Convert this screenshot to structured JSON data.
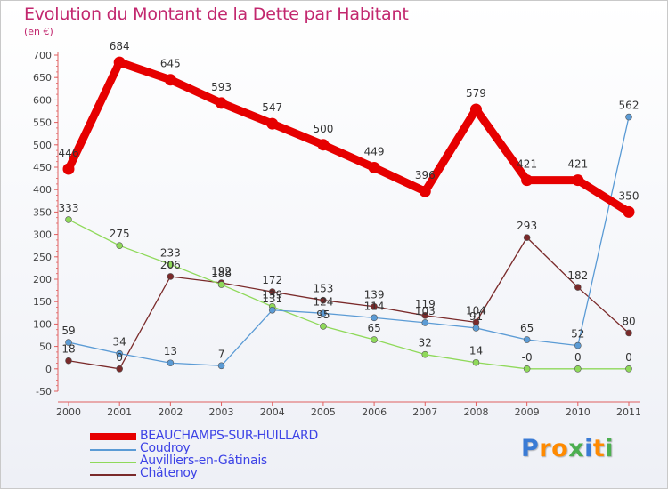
{
  "chart_data": {
    "type": "line",
    "title": "Evolution du Montant de la Dette par Habitant",
    "subtitle": "(en €)",
    "xlabel": "",
    "ylabel": "",
    "categories": [
      "2000",
      "2001",
      "2002",
      "2003",
      "2004",
      "2005",
      "2006",
      "2007",
      "2008",
      "2009",
      "2010",
      "2011"
    ],
    "ylim": [
      -50,
      700
    ],
    "yticks": [
      -50,
      0,
      50,
      100,
      150,
      200,
      250,
      300,
      350,
      400,
      450,
      500,
      550,
      600,
      650,
      700
    ],
    "grid": false,
    "legend_position": "bottom-left",
    "series": [
      {
        "name": "BEAUCHAMPS-SUR-HUILLARD",
        "color": "#e60000",
        "values": [
          446,
          684,
          645,
          593,
          547,
          500,
          449,
          396,
          579,
          421,
          421,
          350
        ],
        "labels": [
          "446",
          "684",
          "645",
          "593",
          "547",
          "500",
          "449",
          "396",
          "579",
          "421",
          "421",
          "350"
        ]
      },
      {
        "name": "Coudroy",
        "color": "#5b9bd5",
        "values": [
          59,
          34,
          13,
          7,
          131,
          124,
          114,
          103,
          91,
          65,
          52,
          562
        ],
        "labels": [
          "59",
          "34",
          "13",
          "7",
          "131",
          "124",
          "114",
          "103",
          "91",
          "65",
          "52",
          "562"
        ]
      },
      {
        "name": "Auvilliers-en-Gâtinais",
        "color": "#8fd95a",
        "values": [
          333,
          275,
          233,
          188,
          139,
          95,
          65,
          32,
          14,
          0,
          0,
          0
        ],
        "labels": [
          "333",
          "275",
          "233",
          "188",
          "139",
          "95",
          "65",
          "32",
          "14",
          "-0",
          "0",
          "0"
        ]
      },
      {
        "name": "Châtenoy",
        "color": "#7a2a2a",
        "values": [
          18,
          0,
          206,
          192,
          172,
          153,
          139,
          119,
          104,
          293,
          182,
          80
        ],
        "labels": [
          "18",
          "0",
          "206",
          "192",
          "172",
          "153",
          "139",
          "119",
          "104",
          "293",
          "182",
          "80"
        ]
      }
    ]
  },
  "logo": {
    "text": "Proxiti",
    "letters": [
      "P",
      "r",
      "o",
      "x",
      "i",
      "t",
      "i"
    ],
    "colors": [
      "#3a7bd5",
      "#ff8a00",
      "#ff8a00",
      "#4caf50",
      "#3a7bd5",
      "#ff8a00",
      "#4caf50"
    ]
  }
}
